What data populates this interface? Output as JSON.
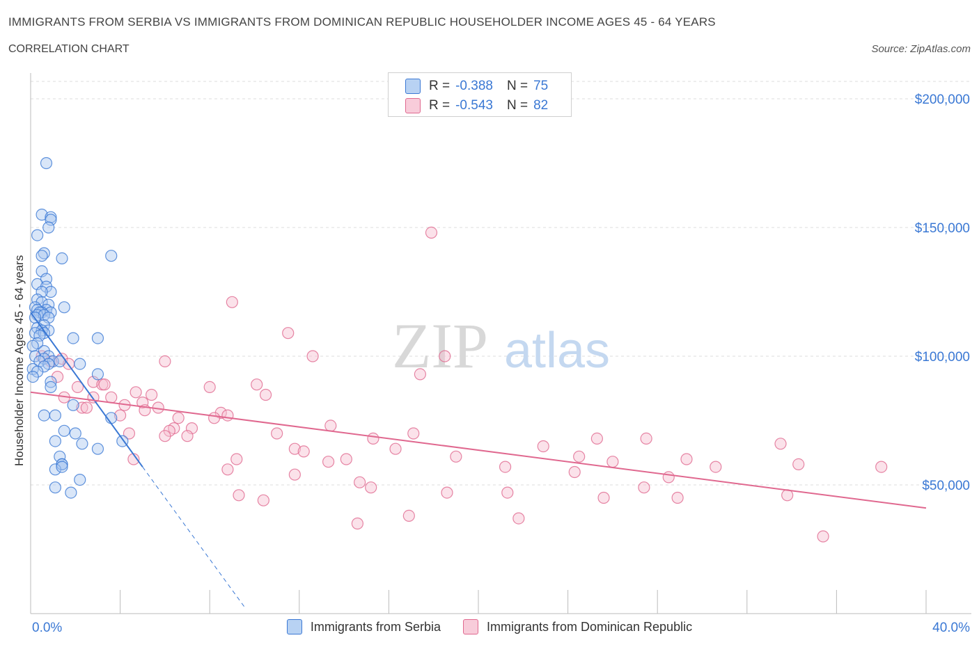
{
  "header": {
    "title": "IMMIGRANTS FROM SERBIA VS IMMIGRANTS FROM DOMINICAN REPUBLIC HOUSEHOLDER INCOME AGES 45 - 64 YEARS",
    "subtitle": "CORRELATION CHART",
    "source": "Source: ZipAtlas.com"
  },
  "watermark": {
    "zip": "ZIP",
    "atlas": "atlas"
  },
  "legend": {
    "rows": [
      {
        "r_label": "R =",
        "r_value": "-0.388",
        "n_label": "N =",
        "n_value": "75"
      },
      {
        "r_label": "R =",
        "r_value": "-0.543",
        "n_label": "N =",
        "n_value": "82"
      }
    ]
  },
  "colors": {
    "serbia_fill": "#aac8f0",
    "serbia_stroke": "#3a78d4",
    "dr_fill": "#f6bfd0",
    "dr_stroke": "#e0688f",
    "axis_text": "#3a78d4",
    "grid": "#dddddd"
  },
  "chart_data": {
    "type": "scatter",
    "title": "IMMIGRANTS FROM SERBIA VS IMMIGRANTS FROM DOMINICAN REPUBLIC HOUSEHOLDER INCOME AGES 45 - 64 YEARS",
    "subtitle": "CORRELATION CHART",
    "ylabel": "Householder Income Ages 45 - 64 years",
    "xlabel": "",
    "x_tick_labels": [
      "0.0%",
      "40.0%"
    ],
    "y_tick_labels": [
      "$50,000",
      "$100,000",
      "$150,000",
      "$200,000"
    ],
    "y_ticks": [
      50000,
      100000,
      150000,
      200000
    ],
    "xlim": [
      0,
      40
    ],
    "ylim": [
      0,
      210000
    ],
    "grid": true,
    "legend_position": "bottom",
    "series": [
      {
        "name": "Immigrants from Serbia",
        "color": "#3a78d4",
        "trend": {
          "x": [
            0,
            5
          ],
          "y": [
            117000,
            57000
          ],
          "extends_dashed_to": [
            9.6,
            2000
          ]
        },
        "points": [
          [
            0.7,
            175000
          ],
          [
            0.5,
            155000
          ],
          [
            0.9,
            154000
          ],
          [
            0.9,
            153000
          ],
          [
            0.8,
            150000
          ],
          [
            0.3,
            147000
          ],
          [
            0.6,
            140000
          ],
          [
            0.5,
            139000
          ],
          [
            3.6,
            139000
          ],
          [
            1.4,
            138000
          ],
          [
            0.5,
            133000
          ],
          [
            0.7,
            130000
          ],
          [
            0.3,
            128000
          ],
          [
            0.7,
            127000
          ],
          [
            0.9,
            125000
          ],
          [
            0.5,
            125000
          ],
          [
            0.3,
            122000
          ],
          [
            0.5,
            121000
          ],
          [
            0.8,
            120000
          ],
          [
            0.2,
            119000
          ],
          [
            0.7,
            118000
          ],
          [
            0.3,
            118000
          ],
          [
            1.5,
            119000
          ],
          [
            0.5,
            117000
          ],
          [
            0.4,
            117000
          ],
          [
            0.9,
            117000
          ],
          [
            0.3,
            116000
          ],
          [
            0.6,
            116000
          ],
          [
            0.8,
            115000
          ],
          [
            0.2,
            115000
          ],
          [
            0.6,
            112000
          ],
          [
            0.3,
            111000
          ],
          [
            0.8,
            110000
          ],
          [
            0.5,
            110000
          ],
          [
            0.2,
            109000
          ],
          [
            0.6,
            109000
          ],
          [
            0.4,
            108000
          ],
          [
            1.9,
            107000
          ],
          [
            3.0,
            107000
          ],
          [
            0.3,
            105000
          ],
          [
            0.1,
            104000
          ],
          [
            0.6,
            102000
          ],
          [
            0.8,
            100000
          ],
          [
            0.2,
            100000
          ],
          [
            0.6,
            99000
          ],
          [
            1.0,
            98000
          ],
          [
            0.4,
            98000
          ],
          [
            0.8,
            97000
          ],
          [
            1.3,
            98000
          ],
          [
            2.2,
            97000
          ],
          [
            0.6,
            96000
          ],
          [
            0.1,
            95000
          ],
          [
            0.3,
            94000
          ],
          [
            3.0,
            93000
          ],
          [
            0.1,
            92000
          ],
          [
            0.9,
            90000
          ],
          [
            0.9,
            88000
          ],
          [
            1.9,
            81000
          ],
          [
            0.6,
            77000
          ],
          [
            1.1,
            77000
          ],
          [
            3.6,
            76000
          ],
          [
            1.5,
            71000
          ],
          [
            2.0,
            70000
          ],
          [
            1.1,
            67000
          ],
          [
            2.3,
            66000
          ],
          [
            4.1,
            67000
          ],
          [
            3.0,
            64000
          ],
          [
            1.3,
            61000
          ],
          [
            1.4,
            58000
          ],
          [
            1.4,
            58000
          ],
          [
            1.1,
            56000
          ],
          [
            1.4,
            57000
          ],
          [
            2.2,
            52000
          ],
          [
            1.1,
            49000
          ],
          [
            1.8,
            47000
          ]
        ]
      },
      {
        "name": "Immigrants from Dominican Republic",
        "color": "#e0688f",
        "trend": {
          "x": [
            0,
            40
          ],
          "y": [
            86000,
            41000
          ]
        },
        "points": [
          [
            17.9,
            148000
          ],
          [
            9.0,
            121000
          ],
          [
            11.5,
            109000
          ],
          [
            0.5,
            100000
          ],
          [
            12.6,
            100000
          ],
          [
            18.5,
            100000
          ],
          [
            6.0,
            98000
          ],
          [
            1.4,
            99000
          ],
          [
            0.9,
            98000
          ],
          [
            1.7,
            97000
          ],
          [
            17.4,
            93000
          ],
          [
            1.2,
            92000
          ],
          [
            2.8,
            90000
          ],
          [
            3.2,
            89000
          ],
          [
            10.1,
            89000
          ],
          [
            3.3,
            89000
          ],
          [
            8.0,
            88000
          ],
          [
            2.1,
            88000
          ],
          [
            4.7,
            86000
          ],
          [
            3.6,
            84000
          ],
          [
            5.4,
            85000
          ],
          [
            10.5,
            85000
          ],
          [
            1.5,
            84000
          ],
          [
            2.8,
            84000
          ],
          [
            5.0,
            82000
          ],
          [
            4.2,
            81000
          ],
          [
            2.3,
            80000
          ],
          [
            2.5,
            80000
          ],
          [
            5.1,
            79000
          ],
          [
            5.7,
            80000
          ],
          [
            4.0,
            77000
          ],
          [
            8.5,
            78000
          ],
          [
            8.8,
            77000
          ],
          [
            6.6,
            76000
          ],
          [
            8.2,
            76000
          ],
          [
            13.4,
            73000
          ],
          [
            6.4,
            72000
          ],
          [
            7.2,
            72000
          ],
          [
            4.4,
            70000
          ],
          [
            6.2,
            71000
          ],
          [
            11.0,
            70000
          ],
          [
            17.1,
            70000
          ],
          [
            15.3,
            68000
          ],
          [
            25.3,
            68000
          ],
          [
            27.5,
            68000
          ],
          [
            6.0,
            69000
          ],
          [
            7.0,
            69000
          ],
          [
            33.5,
            66000
          ],
          [
            22.9,
            65000
          ],
          [
            11.8,
            64000
          ],
          [
            16.3,
            64000
          ],
          [
            12.2,
            63000
          ],
          [
            24.5,
            61000
          ],
          [
            19.0,
            61000
          ],
          [
            9.2,
            60000
          ],
          [
            14.1,
            60000
          ],
          [
            4.6,
            60000
          ],
          [
            13.3,
            59000
          ],
          [
            26.0,
            59000
          ],
          [
            29.3,
            60000
          ],
          [
            34.3,
            58000
          ],
          [
            21.2,
            57000
          ],
          [
            38.0,
            57000
          ],
          [
            30.6,
            57000
          ],
          [
            8.8,
            56000
          ],
          [
            24.3,
            55000
          ],
          [
            11.8,
            54000
          ],
          [
            28.5,
            53000
          ],
          [
            14.7,
            51000
          ],
          [
            15.2,
            49000
          ],
          [
            27.4,
            49000
          ],
          [
            21.3,
            47000
          ],
          [
            25.6,
            45000
          ],
          [
            28.9,
            45000
          ],
          [
            33.8,
            46000
          ],
          [
            9.3,
            46000
          ],
          [
            10.4,
            44000
          ],
          [
            18.6,
            47000
          ],
          [
            16.9,
            38000
          ],
          [
            21.8,
            37000
          ],
          [
            14.6,
            35000
          ],
          [
            35.4,
            30000
          ]
        ]
      }
    ]
  },
  "bottom_legend": {
    "items": [
      "Immigrants from Serbia",
      "Immigrants from Dominican Republic"
    ]
  }
}
